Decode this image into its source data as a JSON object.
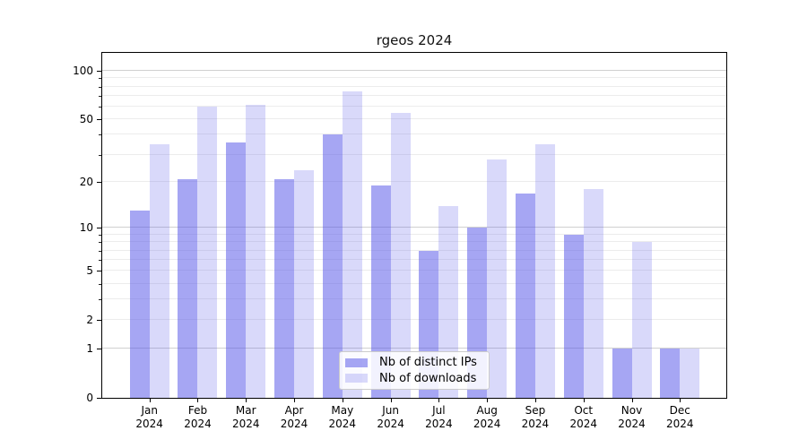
{
  "title": "rgeos 2024",
  "chart_data": {
    "type": "bar",
    "title": "rgeos 2024",
    "y_scale": "log1p",
    "grid": true,
    "ylim": [
      0,
      130
    ],
    "xlabel": "",
    "ylabel": "",
    "categories": [
      "Jan 2024",
      "Feb 2024",
      "Mar 2024",
      "Apr 2024",
      "May 2024",
      "Jun 2024",
      "Jul 2024",
      "Aug 2024",
      "Sep 2024",
      "Oct 2024",
      "Nov 2024",
      "Dec 2024"
    ],
    "series": [
      {
        "name": "Nb of distinct IPs",
        "color": "rgba(77,77,231,0.5)",
        "color_hex": "#a6a6f3",
        "values": [
          13,
          21,
          36,
          21,
          40,
          19,
          7,
          10,
          17,
          9,
          1,
          1
        ]
      },
      {
        "name": "Nb of downloads",
        "color": "rgba(77,77,231,0.21)",
        "color_hex": "#dadafa",
        "values": [
          35,
          60,
          62,
          24,
          75,
          55,
          14,
          28,
          35,
          18,
          8,
          1
        ]
      }
    ],
    "y_tick_labels": [
      0,
      1,
      2,
      5,
      10,
      20,
      50,
      100
    ],
    "y_major_gridlines": [
      1,
      10,
      100
    ],
    "y_minor_gridlines": [
      2,
      3,
      4,
      5,
      6,
      7,
      8,
      9,
      20,
      30,
      40,
      50,
      60,
      70,
      80,
      90
    ],
    "legend": {
      "position": "inside-bottom-center",
      "entries": [
        "Nb of distinct IPs",
        "Nb of downloads"
      ]
    }
  },
  "colors": {
    "grid_minor": "#ececec",
    "grid_major": "#d0d0d0",
    "spine": "#000000",
    "legend_border": "#cccccc"
  }
}
